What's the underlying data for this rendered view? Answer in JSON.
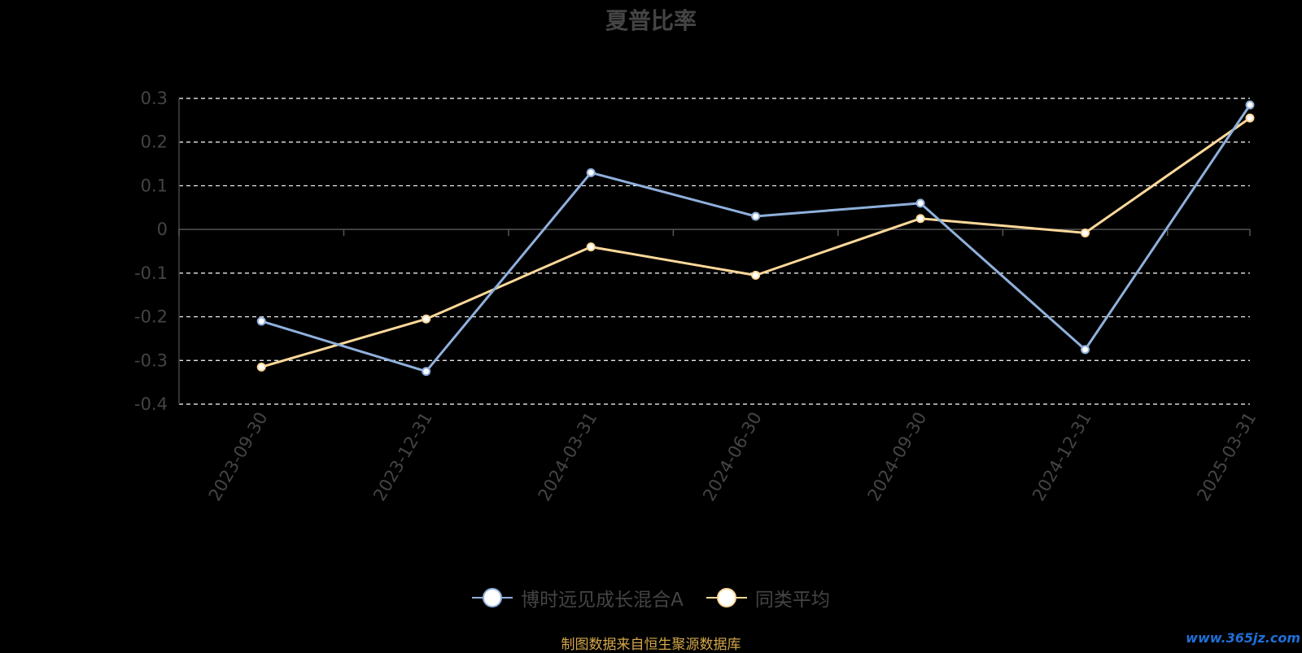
{
  "chart_data": {
    "type": "line",
    "title": "夏普比率",
    "categories": [
      "2023-09-30",
      "2023-12-31",
      "2024-03-31",
      "2024-06-30",
      "2024-09-30",
      "2024-12-31",
      "2025-03-31"
    ],
    "series": [
      {
        "name": "博时远见成长混合A",
        "color": "#8fb0dc",
        "values": [
          -0.21,
          -0.325,
          0.13,
          0.03,
          0.06,
          -0.275,
          0.285
        ]
      },
      {
        "name": "同类平均",
        "color": "#fcd89a",
        "values": [
          -0.315,
          -0.205,
          -0.04,
          -0.105,
          0.025,
          -0.008,
          0.255
        ]
      }
    ],
    "ylim": [
      -0.4,
      0.3
    ],
    "yticks": [
      0.3,
      0.2,
      0.1,
      0,
      -0.1,
      -0.2,
      -0.3,
      -0.4
    ],
    "ytick_labels": [
      "0.3",
      "0.2",
      "0.1",
      "0",
      "-0.1",
      "-0.2",
      "-0.3",
      "-0.4"
    ],
    "grid": true,
    "legend": "bottom-center"
  },
  "source_note": "制图数据来自恒生聚源数据库",
  "watermark": "www.365jz.com"
}
